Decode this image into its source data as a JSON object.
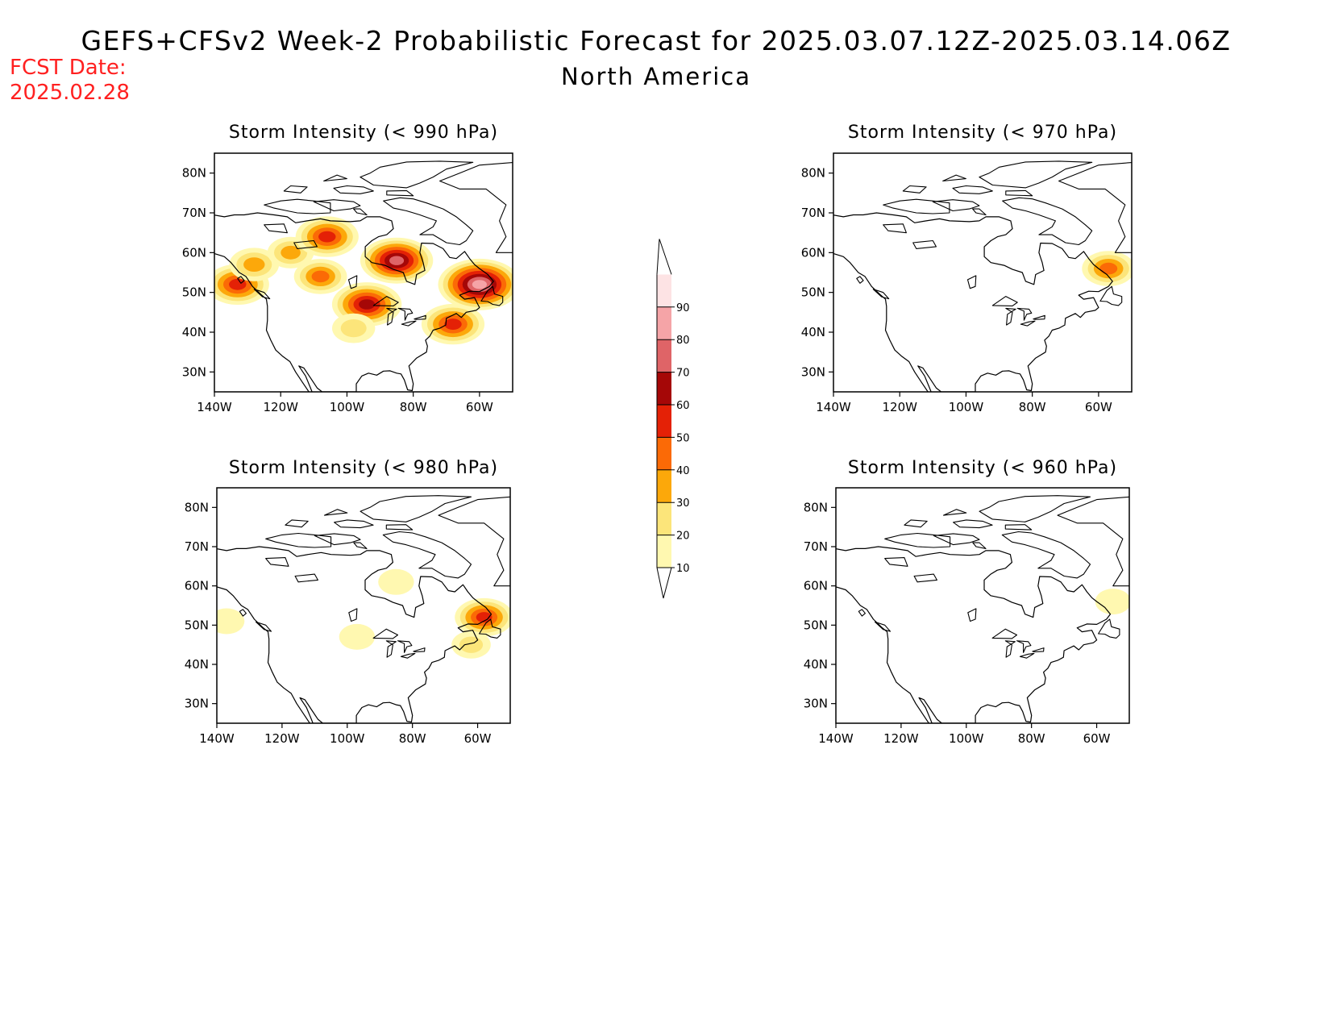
{
  "header": {
    "title_line1": "GEFS+CFSv2 Week-2 Probabilistic Forecast for 2025.03.07.12Z-2025.03.14.06Z",
    "title_line2": "North America",
    "fcst_label": "FCST Date:",
    "fcst_date": "2025.02.28",
    "fcst_color": "#ff2020"
  },
  "axes": {
    "lat_ticks": [
      "80N",
      "70N",
      "60N",
      "50N",
      "40N",
      "30N"
    ],
    "lat_values": [
      80,
      70,
      60,
      50,
      40,
      30
    ],
    "lon_ticks": [
      "140W",
      "120W",
      "100W",
      "80W",
      "60W"
    ],
    "lon_values": [
      -140,
      -120,
      -100,
      -80,
      -60
    ],
    "lon_range": [
      -140,
      -50
    ],
    "lat_range": [
      25,
      85
    ]
  },
  "colorbar": {
    "levels": [
      "10",
      "20",
      "30",
      "40",
      "50",
      "60",
      "70",
      "80",
      "90"
    ],
    "colors": [
      "#fff8b0",
      "#fce57a",
      "#fca80a",
      "#fb6a06",
      "#e42106",
      "#a50707",
      "#df6467",
      "#f5a4a7",
      "#fde3e4"
    ]
  },
  "panels": [
    {
      "title": "Storm Intensity (< 990 hPa)",
      "regions": [
        {
          "lon": -133,
          "lat": 52,
          "value": 55
        },
        {
          "lon": -128,
          "lat": 57,
          "value": 35
        },
        {
          "lon": -117,
          "lat": 60,
          "value": 30
        },
        {
          "lon": -106,
          "lat": 64,
          "value": 55
        },
        {
          "lon": -108,
          "lat": 54,
          "value": 40
        },
        {
          "lon": -94,
          "lat": 47,
          "value": 65
        },
        {
          "lon": -98,
          "lat": 41,
          "value": 25
        },
        {
          "lon": -85,
          "lat": 58,
          "value": 70
        },
        {
          "lon": -60,
          "lat": 52,
          "value": 85
        },
        {
          "lon": -68,
          "lat": 42,
          "value": 55
        }
      ]
    },
    {
      "title": "Storm Intensity (< 970 hPa)",
      "regions": [
        {
          "lon": -57,
          "lat": 56,
          "value": 40
        }
      ]
    },
    {
      "title": "Storm Intensity (< 980 hPa)",
      "regions": [
        {
          "lon": -137,
          "lat": 51,
          "value": 15
        },
        {
          "lon": -97,
          "lat": 47,
          "value": 15
        },
        {
          "lon": -85,
          "lat": 61,
          "value": 15
        },
        {
          "lon": -58,
          "lat": 52,
          "value": 50
        },
        {
          "lon": -62,
          "lat": 45,
          "value": 20
        }
      ]
    },
    {
      "title": "Storm Intensity (< 960 hPa)",
      "regions": [
        {
          "lon": -55,
          "lat": 56,
          "value": 15
        }
      ]
    }
  ]
}
